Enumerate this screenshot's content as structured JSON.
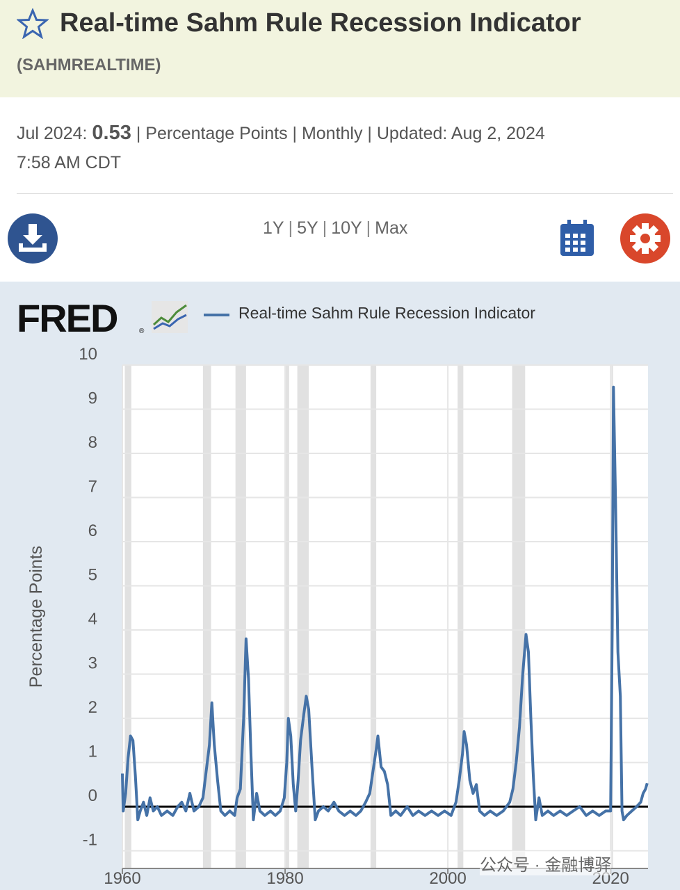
{
  "header": {
    "title": "Real-time Sahm Rule Recession Indicator",
    "series_id": "(SAHMREALTIME)"
  },
  "meta": {
    "date": "Jul 2024:",
    "value": 0.53,
    "details": "| Percentage Points | Monthly | Updated:",
    "updated": "Aug 2, 2024",
    "time": "7:58 AM CDT"
  },
  "ranges": [
    "1Y",
    "5Y",
    "10Y",
    "Max"
  ],
  "logo": "FRED",
  "logo_mark": "®",
  "watermark": "公众号 · 金融博驿",
  "chart_data": {
    "type": "line",
    "ylabel": "Percentage Points",
    "x": [
      1960.0,
      1960.1,
      1960.4,
      1960.7,
      1961.0,
      1961.3,
      1961.6,
      1961.9,
      1962.2,
      1962.6,
      1963.0,
      1963.4,
      1963.8,
      1964.3,
      1964.8,
      1965.5,
      1966.2,
      1966.8,
      1967.3,
      1967.8,
      1968.3,
      1968.8,
      1969.4,
      1969.9,
      1970.3,
      1970.7,
      1971.0,
      1971.3,
      1971.7,
      1972.1,
      1972.6,
      1973.2,
      1973.8,
      1974.1,
      1974.5,
      1974.9,
      1975.2,
      1975.5,
      1975.8,
      1976.1,
      1976.5,
      1976.9,
      1977.5,
      1978.2,
      1978.8,
      1979.4,
      1979.9,
      1980.2,
      1980.4,
      1980.7,
      1981.0,
      1981.3,
      1981.6,
      1981.9,
      1982.3,
      1982.6,
      1982.9,
      1983.3,
      1983.7,
      1984.1,
      1984.7,
      1985.3,
      1986.0,
      1986.6,
      1987.3,
      1988.0,
      1988.7,
      1989.3,
      1989.9,
      1990.4,
      1990.8,
      1991.2,
      1991.4,
      1991.8,
      1992.2,
      1992.6,
      1993.0,
      1993.6,
      1994.2,
      1995.0,
      1995.7,
      1996.4,
      1997.2,
      1998.0,
      1998.8,
      1999.6,
      2000.4,
      2001.0,
      2001.4,
      2001.8,
      2002.0,
      2002.3,
      2002.7,
      2003.1,
      2003.5,
      2003.9,
      2004.5,
      2005.2,
      2006.0,
      2006.8,
      2007.6,
      2008.0,
      2008.4,
      2008.8,
      2009.2,
      2009.6,
      2009.9,
      2010.2,
      2010.5,
      2010.8,
      2011.2,
      2011.6,
      2012.3,
      2013.0,
      2013.8,
      2014.6,
      2015.4,
      2016.2,
      2017.0,
      2017.8,
      2018.6,
      2019.4,
      2020.0,
      2020.2,
      2020.35,
      2020.6,
      2020.9,
      2021.2,
      2021.4,
      2021.6,
      2022.0,
      2022.6,
      2023.2,
      2023.7,
      2024.0,
      2024.3,
      2024.5
    ],
    "series": [
      {
        "name": "Real-time Sahm Rule Recession Indicator",
        "color": "#4572a7",
        "values": [
          0.75,
          -0.1,
          0.3,
          1.1,
          1.6,
          1.5,
          0.7,
          -0.3,
          -0.1,
          0.1,
          -0.2,
          0.2,
          -0.1,
          0.0,
          -0.2,
          -0.1,
          -0.2,
          0.0,
          0.1,
          -0.1,
          0.3,
          -0.1,
          0.0,
          0.2,
          0.8,
          1.4,
          2.35,
          1.4,
          0.6,
          -0.1,
          -0.2,
          -0.1,
          -0.2,
          0.2,
          0.4,
          2.0,
          3.8,
          2.9,
          1.2,
          -0.3,
          0.3,
          -0.1,
          -0.2,
          -0.1,
          -0.2,
          -0.1,
          0.2,
          1.0,
          2.0,
          1.6,
          0.5,
          -0.1,
          0.6,
          1.5,
          2.1,
          2.5,
          2.2,
          0.9,
          -0.3,
          -0.1,
          0.0,
          -0.1,
          0.1,
          -0.1,
          -0.2,
          -0.1,
          -0.2,
          -0.1,
          0.1,
          0.3,
          0.8,
          1.3,
          1.6,
          0.9,
          0.8,
          0.5,
          -0.2,
          -0.1,
          -0.2,
          0.0,
          -0.2,
          -0.1,
          -0.2,
          -0.1,
          -0.2,
          -0.1,
          -0.2,
          0.1,
          0.6,
          1.2,
          1.7,
          1.4,
          0.6,
          0.3,
          0.5,
          -0.1,
          -0.2,
          -0.1,
          -0.2,
          -0.1,
          0.1,
          0.4,
          1.0,
          1.8,
          3.0,
          3.9,
          3.5,
          2.0,
          0.7,
          -0.3,
          0.2,
          -0.2,
          -0.1,
          -0.2,
          -0.1,
          -0.2,
          -0.1,
          0.0,
          -0.2,
          -0.1,
          -0.2,
          -0.1,
          -0.1,
          4.0,
          9.5,
          7.0,
          3.5,
          2.5,
          -0.1,
          -0.3,
          -0.2,
          -0.1,
          0.0,
          0.1,
          0.3,
          0.4,
          0.53
        ]
      }
    ],
    "recessions": [
      [
        1960.3,
        1961.1
      ],
      [
        1969.9,
        1970.9
      ],
      [
        1973.9,
        1975.2
      ],
      [
        1980.0,
        1980.5
      ],
      [
        1981.5,
        1982.9
      ],
      [
        1990.5,
        1991.2
      ],
      [
        2001.2,
        2001.9
      ],
      [
        2007.9,
        2009.5
      ],
      [
        2020.1,
        2020.3
      ]
    ],
    "xlim": [
      1960,
      2024.6
    ],
    "xticks": [
      1960,
      1980,
      2000,
      2020
    ],
    "ylim": [
      -1.4,
      10
    ],
    "yticks": [
      -1,
      0,
      1,
      2,
      3,
      4,
      5,
      6,
      7,
      8,
      9,
      10
    ],
    "grid": true,
    "legend": "top"
  }
}
